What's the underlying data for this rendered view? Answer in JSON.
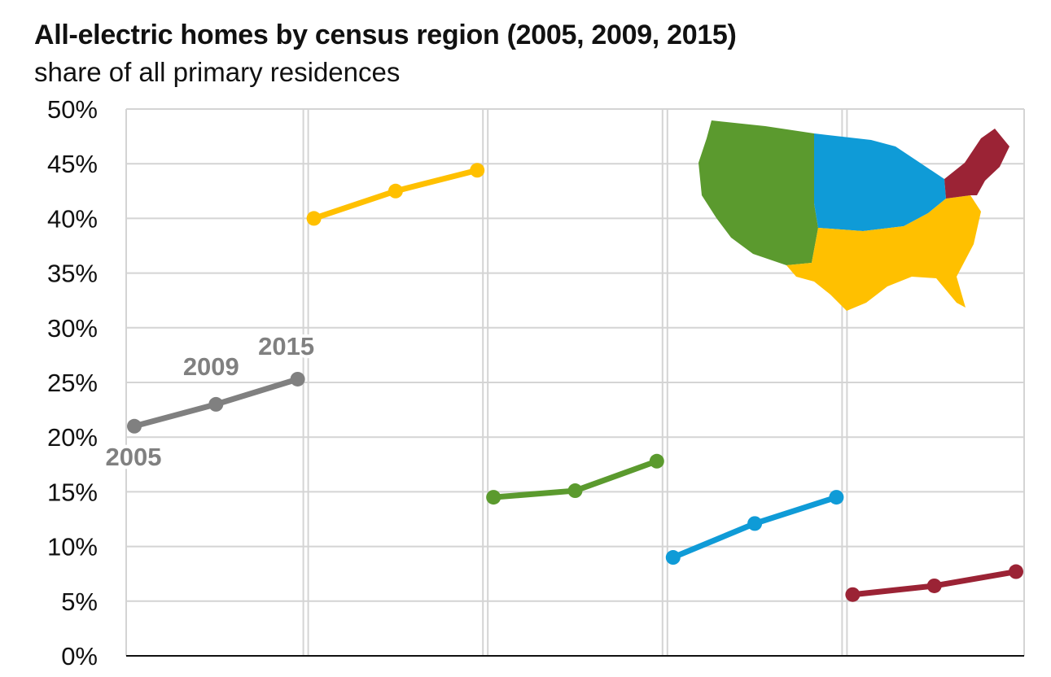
{
  "chart_data": {
    "type": "line",
    "title": "All-electric homes by census region (2005, 2009, 2015)",
    "subtitle": "share of all primary residences",
    "y_ticks": [
      "0%",
      "5%",
      "10%",
      "15%",
      "20%",
      "25%",
      "30%",
      "35%",
      "40%",
      "45%",
      "50%"
    ],
    "ylim": [
      0,
      50
    ],
    "x": [
      "2005",
      "2009",
      "2015"
    ],
    "year_labels": [
      "2005",
      "2009",
      "2015"
    ],
    "grid": true,
    "series": [
      {
        "values": [
          21.0,
          23.0,
          25.3
        ],
        "color": "#808080"
      },
      {
        "values": [
          40.0,
          42.5,
          44.4
        ],
        "color": "#FFC000"
      },
      {
        "values": [
          14.5,
          15.1,
          17.8
        ],
        "color": "#5B9A2E"
      },
      {
        "values": [
          9.0,
          12.1,
          14.5
        ],
        "color": "#0F9BD7"
      },
      {
        "values": [
          5.6,
          6.4,
          7.7
        ],
        "color": "#9B2335"
      }
    ],
    "map_inset": {
      "regions": [
        "West",
        "South",
        "Midwest",
        "Northeast"
      ]
    }
  }
}
